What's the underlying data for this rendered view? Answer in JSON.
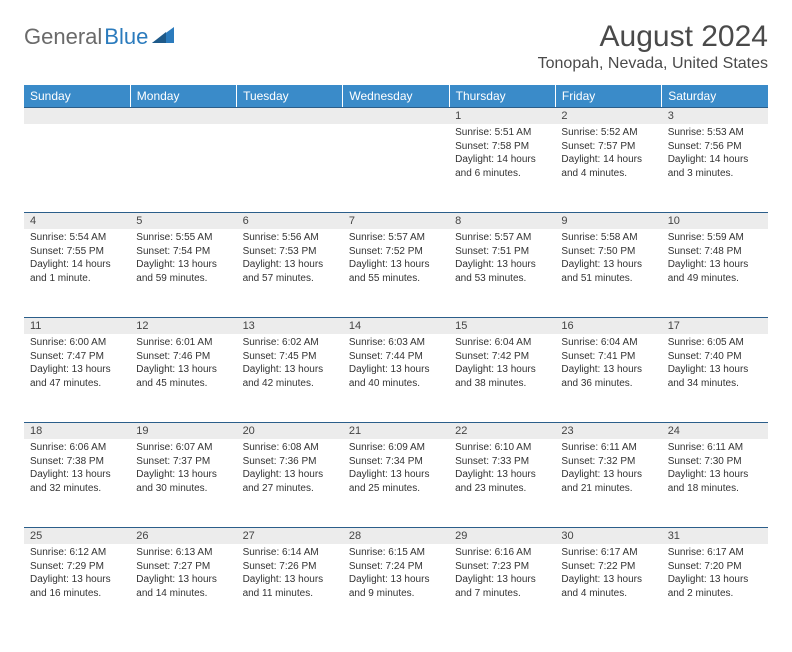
{
  "brand": {
    "part1": "General",
    "part2": "Blue"
  },
  "title": "August 2024",
  "location": "Tonopah, Nevada, United States",
  "colors": {
    "header_bg": "#3a8bc9",
    "header_text": "#ffffff",
    "daynum_bg": "#ececec",
    "border": "#2b5e8a",
    "text": "#333333",
    "title_text": "#4a4a4a",
    "logo_gray": "#6a6a6a",
    "logo_blue": "#2b7bbd"
  },
  "day_names": [
    "Sunday",
    "Monday",
    "Tuesday",
    "Wednesday",
    "Thursday",
    "Friday",
    "Saturday"
  ],
  "weeks": [
    [
      null,
      null,
      null,
      null,
      {
        "n": "1",
        "sr": "5:51 AM",
        "ss": "7:58 PM",
        "dl": "14 hours and 6 minutes."
      },
      {
        "n": "2",
        "sr": "5:52 AM",
        "ss": "7:57 PM",
        "dl": "14 hours and 4 minutes."
      },
      {
        "n": "3",
        "sr": "5:53 AM",
        "ss": "7:56 PM",
        "dl": "14 hours and 3 minutes."
      }
    ],
    [
      {
        "n": "4",
        "sr": "5:54 AM",
        "ss": "7:55 PM",
        "dl": "14 hours and 1 minute."
      },
      {
        "n": "5",
        "sr": "5:55 AM",
        "ss": "7:54 PM",
        "dl": "13 hours and 59 minutes."
      },
      {
        "n": "6",
        "sr": "5:56 AM",
        "ss": "7:53 PM",
        "dl": "13 hours and 57 minutes."
      },
      {
        "n": "7",
        "sr": "5:57 AM",
        "ss": "7:52 PM",
        "dl": "13 hours and 55 minutes."
      },
      {
        "n": "8",
        "sr": "5:57 AM",
        "ss": "7:51 PM",
        "dl": "13 hours and 53 minutes."
      },
      {
        "n": "9",
        "sr": "5:58 AM",
        "ss": "7:50 PM",
        "dl": "13 hours and 51 minutes."
      },
      {
        "n": "10",
        "sr": "5:59 AM",
        "ss": "7:48 PM",
        "dl": "13 hours and 49 minutes."
      }
    ],
    [
      {
        "n": "11",
        "sr": "6:00 AM",
        "ss": "7:47 PM",
        "dl": "13 hours and 47 minutes."
      },
      {
        "n": "12",
        "sr": "6:01 AM",
        "ss": "7:46 PM",
        "dl": "13 hours and 45 minutes."
      },
      {
        "n": "13",
        "sr": "6:02 AM",
        "ss": "7:45 PM",
        "dl": "13 hours and 42 minutes."
      },
      {
        "n": "14",
        "sr": "6:03 AM",
        "ss": "7:44 PM",
        "dl": "13 hours and 40 minutes."
      },
      {
        "n": "15",
        "sr": "6:04 AM",
        "ss": "7:42 PM",
        "dl": "13 hours and 38 minutes."
      },
      {
        "n": "16",
        "sr": "6:04 AM",
        "ss": "7:41 PM",
        "dl": "13 hours and 36 minutes."
      },
      {
        "n": "17",
        "sr": "6:05 AM",
        "ss": "7:40 PM",
        "dl": "13 hours and 34 minutes."
      }
    ],
    [
      {
        "n": "18",
        "sr": "6:06 AM",
        "ss": "7:38 PM",
        "dl": "13 hours and 32 minutes."
      },
      {
        "n": "19",
        "sr": "6:07 AM",
        "ss": "7:37 PM",
        "dl": "13 hours and 30 minutes."
      },
      {
        "n": "20",
        "sr": "6:08 AM",
        "ss": "7:36 PM",
        "dl": "13 hours and 27 minutes."
      },
      {
        "n": "21",
        "sr": "6:09 AM",
        "ss": "7:34 PM",
        "dl": "13 hours and 25 minutes."
      },
      {
        "n": "22",
        "sr": "6:10 AM",
        "ss": "7:33 PM",
        "dl": "13 hours and 23 minutes."
      },
      {
        "n": "23",
        "sr": "6:11 AM",
        "ss": "7:32 PM",
        "dl": "13 hours and 21 minutes."
      },
      {
        "n": "24",
        "sr": "6:11 AM",
        "ss": "7:30 PM",
        "dl": "13 hours and 18 minutes."
      }
    ],
    [
      {
        "n": "25",
        "sr": "6:12 AM",
        "ss": "7:29 PM",
        "dl": "13 hours and 16 minutes."
      },
      {
        "n": "26",
        "sr": "6:13 AM",
        "ss": "7:27 PM",
        "dl": "13 hours and 14 minutes."
      },
      {
        "n": "27",
        "sr": "6:14 AM",
        "ss": "7:26 PM",
        "dl": "13 hours and 11 minutes."
      },
      {
        "n": "28",
        "sr": "6:15 AM",
        "ss": "7:24 PM",
        "dl": "13 hours and 9 minutes."
      },
      {
        "n": "29",
        "sr": "6:16 AM",
        "ss": "7:23 PM",
        "dl": "13 hours and 7 minutes."
      },
      {
        "n": "30",
        "sr": "6:17 AM",
        "ss": "7:22 PM",
        "dl": "13 hours and 4 minutes."
      },
      {
        "n": "31",
        "sr": "6:17 AM",
        "ss": "7:20 PM",
        "dl": "13 hours and 2 minutes."
      }
    ]
  ],
  "labels": {
    "sunrise": "Sunrise:",
    "sunset": "Sunset:",
    "daylight": "Daylight:"
  }
}
